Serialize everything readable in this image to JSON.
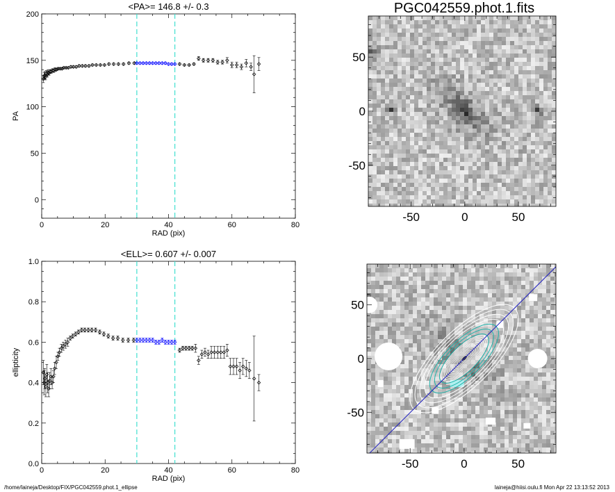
{
  "footer": {
    "path": "/home/laineja/Desktop/FIX/PGC042559.phot.1_ellipse",
    "user_time": "laineja@hiisi.oulu.fi  Mon Apr 22 13:13:52 2013"
  },
  "colors": {
    "fit_range_lines": "#40e0d0",
    "fit_points": "#0000ff",
    "contours_inner": "#20b2aa",
    "contours_outer": "#ffffff",
    "major_axis": "#2020c0"
  },
  "chart_data": [
    {
      "type": "scatter",
      "title": "<PA>= 146.8 +/-   0.3",
      "xlabel": "RAD (pix)",
      "ylabel": "PA",
      "xlim": [
        0,
        80
      ],
      "ylim": [
        -20,
        200
      ],
      "xticks": [
        0,
        20,
        40,
        60,
        80
      ],
      "yticks": [
        0,
        50,
        100,
        150,
        200
      ],
      "fit_range": [
        30,
        42
      ],
      "series": [
        {
          "x": [
            0.5,
            0.8,
            1.0,
            1.2,
            1.5,
            1.8,
            2.0,
            2.3,
            2.6,
            3.0,
            3.4,
            3.8,
            4.2,
            4.7,
            5.2,
            5.8,
            6.4,
            7.0,
            7.7,
            8.4,
            9.2,
            10.0,
            10.9,
            11.8,
            12.8,
            13.8,
            14.9,
            16.0,
            17.2,
            18.5,
            19.8,
            21.2,
            22.7,
            24.2,
            25.8,
            27.5,
            29.2
          ],
          "y": [
            130,
            133,
            134,
            132,
            136,
            135,
            137,
            136,
            138,
            138,
            139,
            139,
            140,
            140,
            141,
            141,
            141,
            142,
            142,
            142,
            143,
            143,
            143,
            144,
            144,
            144,
            144,
            145,
            145,
            145,
            145,
            146,
            146,
            146,
            146,
            147,
            147
          ],
          "err": [
            4,
            4,
            4,
            3,
            3,
            3,
            3,
            2,
            2,
            2,
            2,
            2,
            2,
            1,
            1,
            1,
            1,
            1,
            1,
            1,
            1,
            1,
            1,
            1,
            1,
            1,
            1,
            1,
            1,
            1,
            1,
            1,
            1,
            1,
            1,
            1,
            1
          ]
        },
        {
          "x": [
            30.0,
            31.0,
            32.0,
            33.0,
            34.0,
            35.0,
            36.0,
            37.0,
            38.0,
            39.0,
            40.0,
            41.0,
            42.0
          ],
          "y": [
            147,
            147,
            147,
            147,
            147,
            147,
            147,
            147,
            147,
            147,
            146,
            146,
            146
          ],
          "err": [
            1,
            1,
            1,
            1,
            1,
            1,
            1,
            1,
            1,
            1,
            1,
            1,
            1
          ]
        },
        {
          "x": [
            43.5,
            45.0,
            46.5,
            48.0,
            49.5,
            51.0,
            52.5,
            54.0,
            55.5,
            57.0,
            58.5,
            60.0,
            61.5,
            63.0,
            64.5,
            66.0,
            67.0,
            68.5
          ],
          "y": [
            146,
            145,
            145,
            146,
            152,
            150,
            150,
            150,
            148,
            148,
            150,
            145,
            145,
            143,
            147,
            143,
            135,
            146
          ],
          "err": [
            1,
            1,
            1,
            1,
            2,
            2,
            2,
            2,
            2,
            2,
            3,
            3,
            3,
            3,
            4,
            4,
            20,
            7
          ]
        }
      ]
    },
    {
      "type": "image",
      "title": "PGC042559.phot.1.fits",
      "xlim": [
        -90,
        85
      ],
      "ylim": [
        -88,
        88
      ],
      "xticks": [
        -50,
        0,
        50
      ],
      "yticks": [
        50,
        0,
        -50
      ]
    },
    {
      "type": "scatter",
      "title": "<ELL>= 0.607 +/-  0.007",
      "xlabel": "RAD (pix)",
      "ylabel": "ellipticity",
      "xlim": [
        0,
        80
      ],
      "ylim": [
        0.0,
        1.0
      ],
      "xticks": [
        0,
        20,
        40,
        60,
        80
      ],
      "yticks": [
        0.0,
        0.2,
        0.4,
        0.6,
        0.8,
        1.0
      ],
      "fit_range": [
        30,
        42
      ],
      "series": [
        {
          "x": [
            0.5,
            0.8,
            1.0,
            1.3,
            1.6,
            1.9,
            2.2,
            2.5,
            2.9,
            3.3,
            3.7,
            4.1,
            4.6,
            5.1,
            5.6,
            6.2,
            6.8,
            7.5,
            8.2,
            9.0,
            9.8,
            10.7,
            11.6,
            12.6,
            13.6,
            14.7,
            15.8,
            17.0,
            18.3,
            19.6,
            21.0,
            22.5,
            24.0,
            25.6,
            27.3,
            29.0
          ],
          "y": [
            0.45,
            0.4,
            0.42,
            0.38,
            0.44,
            0.4,
            0.37,
            0.41,
            0.43,
            0.4,
            0.43,
            0.47,
            0.5,
            0.53,
            0.55,
            0.57,
            0.58,
            0.59,
            0.6,
            0.62,
            0.63,
            0.64,
            0.65,
            0.66,
            0.66,
            0.66,
            0.66,
            0.66,
            0.65,
            0.64,
            0.63,
            0.62,
            0.62,
            0.61,
            0.61,
            0.61
          ],
          "err": [
            0.06,
            0.06,
            0.05,
            0.05,
            0.05,
            0.05,
            0.04,
            0.04,
            0.04,
            0.03,
            0.03,
            0.03,
            0.03,
            0.02,
            0.02,
            0.02,
            0.02,
            0.02,
            0.02,
            0.01,
            0.01,
            0.01,
            0.01,
            0.01,
            0.01,
            0.01,
            0.01,
            0.01,
            0.01,
            0.01,
            0.01,
            0.01,
            0.01,
            0.01,
            0.01,
            0.01
          ]
        },
        {
          "x": [
            30.0,
            31.0,
            32.0,
            33.0,
            34.0,
            35.0,
            36.0,
            37.0,
            38.0,
            39.0,
            40.0,
            41.0,
            42.0
          ],
          "y": [
            0.61,
            0.61,
            0.61,
            0.61,
            0.61,
            0.61,
            0.6,
            0.6,
            0.61,
            0.6,
            0.6,
            0.6,
            0.6
          ],
          "err": [
            0.01,
            0.01,
            0.01,
            0.01,
            0.01,
            0.01,
            0.01,
            0.01,
            0.01,
            0.01,
            0.01,
            0.01,
            0.01
          ]
        },
        {
          "x": [
            43.5,
            44.5,
            45.5,
            46.5,
            47.5,
            48.5,
            49.5,
            50.5,
            51.5,
            52.5,
            53.5,
            54.5,
            55.5,
            56.5,
            57.5,
            58.5,
            59.5,
            60.5,
            61.5,
            62.5,
            63.5,
            64.5,
            65.5,
            67.0,
            68.5
          ],
          "y": [
            0.56,
            0.57,
            0.57,
            0.57,
            0.57,
            0.57,
            0.51,
            0.54,
            0.55,
            0.54,
            0.55,
            0.55,
            0.55,
            0.55,
            0.55,
            0.56,
            0.48,
            0.48,
            0.48,
            0.46,
            0.48,
            0.47,
            0.46,
            0.42,
            0.4
          ],
          "err": [
            0.01,
            0.01,
            0.01,
            0.01,
            0.01,
            0.02,
            0.02,
            0.02,
            0.02,
            0.02,
            0.03,
            0.03,
            0.03,
            0.03,
            0.03,
            0.03,
            0.04,
            0.04,
            0.04,
            0.04,
            0.04,
            0.04,
            0.04,
            0.21,
            0.04
          ]
        }
      ]
    },
    {
      "type": "image",
      "title": "",
      "xlim": [
        -90,
        85
      ],
      "ylim": [
        -88,
        88
      ],
      "xticks": [
        -50,
        0,
        50
      ],
      "yticks": [
        50,
        0,
        -50
      ],
      "ellipse_fit": {
        "pa_deg": 146.8,
        "ellipticity": 0.607,
        "semi_major_max": 68
      }
    }
  ]
}
